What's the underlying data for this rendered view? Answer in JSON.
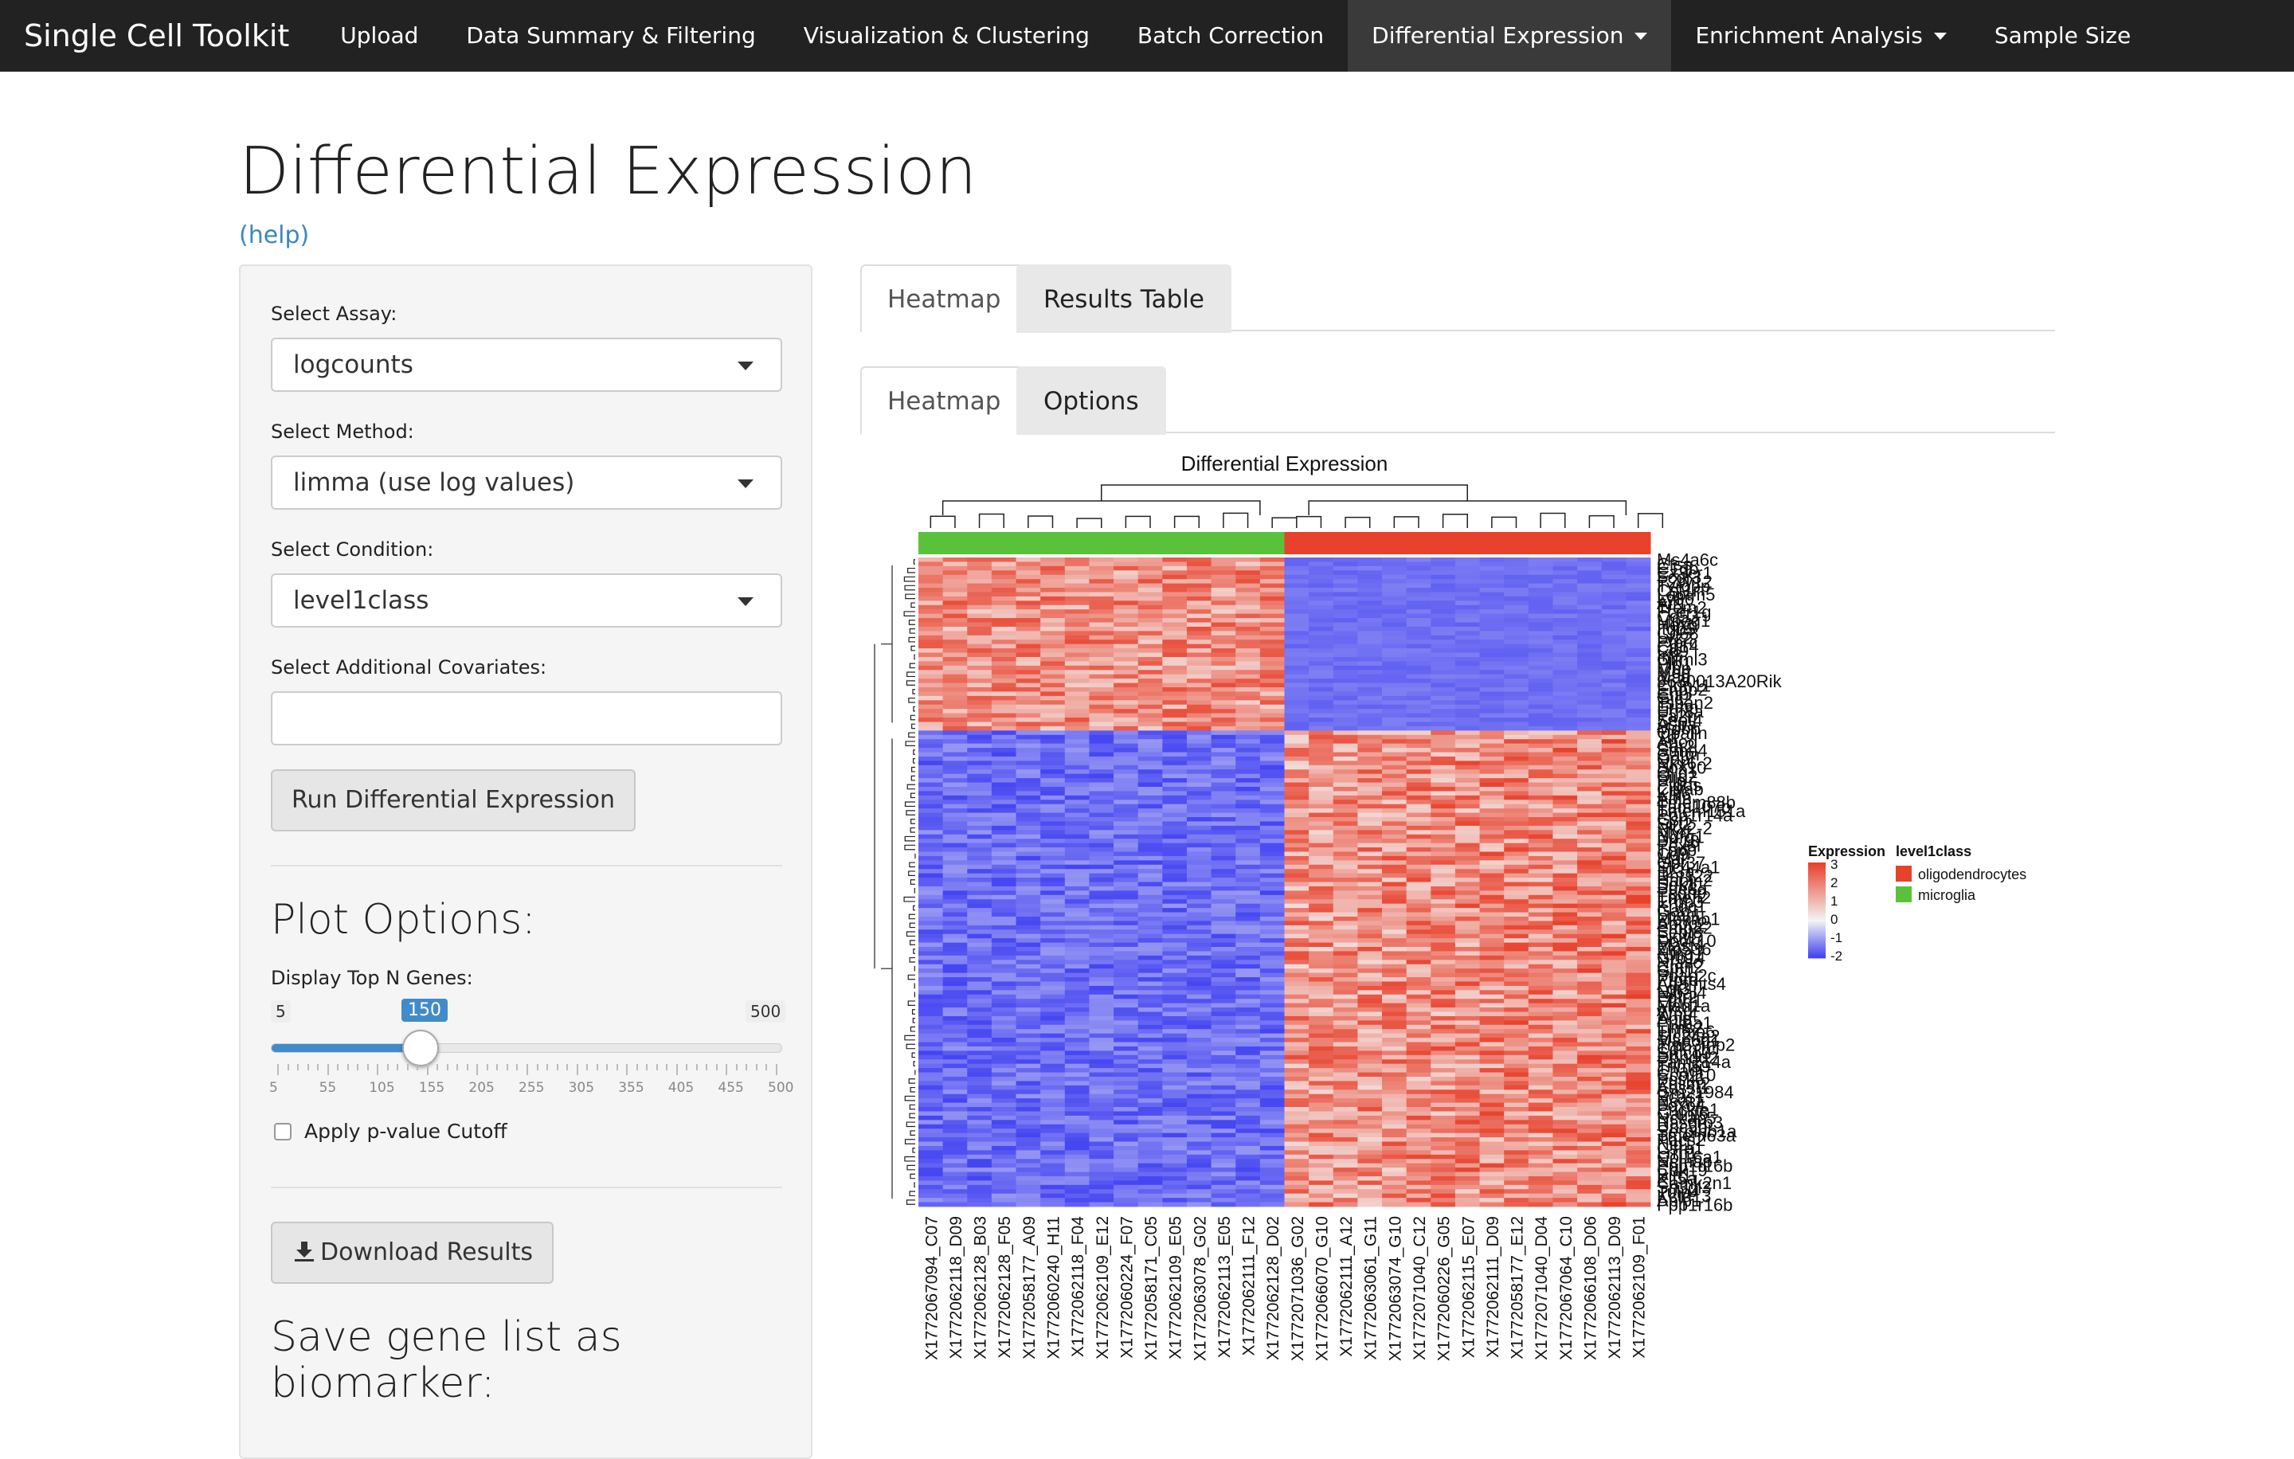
{
  "navbar": {
    "brand": "Single Cell Toolkit",
    "items": [
      {
        "label": "Upload"
      },
      {
        "label": "Data Summary & Filtering"
      },
      {
        "label": "Visualization & Clustering"
      },
      {
        "label": "Batch Correction"
      },
      {
        "label": "Differential Expression"
      },
      {
        "label": "Enrichment Analysis"
      },
      {
        "label": "Sample Size"
      }
    ]
  },
  "page": {
    "title": "Differential Expression",
    "help": "(help)"
  },
  "sidebar": {
    "assay_label": "Select Assay:",
    "assay_value": "logcounts",
    "method_label": "Select Method:",
    "method_value": "limma (use log values)",
    "condition_label": "Select Condition:",
    "condition_value": "level1class",
    "covariates_label": "Select Additional Covariates:",
    "covariates_value": "",
    "run_button": "Run Differential Expression",
    "plot_options_heading": "Plot Options:",
    "top_n_label": "Display Top N Genes:",
    "slider": {
      "min": 5,
      "max": 500,
      "value": 150,
      "min_label": "5",
      "max_label": "500",
      "value_label": "150",
      "ticks": [
        "5",
        "55",
        "105",
        "155",
        "205",
        "255",
        "305",
        "355",
        "405",
        "455",
        "500"
      ]
    },
    "pvalue_label": "Apply p-value Cutoff",
    "pvalue_checked": false,
    "download_button": "Download Results",
    "biomarker_heading": "Save gene list as biomarker:"
  },
  "tabs": {
    "main": [
      {
        "label": "Heatmap"
      },
      {
        "label": "Results Table"
      }
    ],
    "sub": [
      {
        "label": "Heatmap"
      },
      {
        "label": "Options"
      }
    ]
  },
  "heatmap": {
    "title": "Differential Expression",
    "samples": [
      "X1772067094_C07",
      "X1772062118_D09",
      "X1772062128_B03",
      "X1772062128_F05",
      "X1772058177_A09",
      "X1772060240_H11",
      "X1772062118_F04",
      "X1772062109_E12",
      "X1772060224_F07",
      "X1772058171_C05",
      "X1772062109_E05",
      "X1772063078_G02",
      "X1772062113_E05",
      "X1772062111_F12",
      "X1772062128_D02",
      "X1772071036_G02",
      "X1772066070_G10",
      "X1772062111_A12",
      "X1772063061_G11",
      "X1772063074_G10",
      "X1772071040_C12",
      "X1772060226_G05",
      "X1772062115_E07",
      "X1772062111_D09",
      "X1772058177_E12",
      "X1772071040_D04",
      "X1772067064_C10",
      "X1772066108_D06",
      "X1772062113_D09",
      "X1772062109_F01"
    ],
    "sample_groups": [
      "microglia",
      "microglia",
      "microglia",
      "microglia",
      "microglia",
      "microglia",
      "microglia",
      "microglia",
      "microglia",
      "microglia",
      "microglia",
      "microglia",
      "microglia",
      "microglia",
      "microglia",
      "oligodendrocytes",
      "oligodendrocytes",
      "oligodendrocytes",
      "oligodendrocytes",
      "oligodendrocytes",
      "oligodendrocytes",
      "oligodendrocytes",
      "oligodendrocytes",
      "oligodendrocytes",
      "oligodendrocytes",
      "oligodendrocytes",
      "oligodendrocytes",
      "oligodendrocytes",
      "oligodendrocytes",
      "oligodendrocytes"
    ],
    "gene_labels": [
      "Ms4a6c",
      "Ctss",
      "C1qb",
      "Cx3cr1",
      "Fcgr3",
      "P2ry12",
      "Tyrobp",
      "Csf1r",
      "Laptm5",
      "Ly86",
      "Aif1",
      "Trem2",
      "Fcer1g",
      "Cd53",
      "Mpeg1",
      "Hexb",
      "Itgb5",
      "Cd68",
      "Lyz2",
      "Ptprc",
      "Cd14",
      "Cd9",
      "Irf8",
      "Olfml3",
      "Plp1",
      "Mbp",
      "Mog",
      "Mag",
      "9630013A20Rik",
      "Cldn11",
      "Enpp2",
      "Cnp",
      "Gjc2",
      "Tspan2",
      "Ermn",
      "Ugt8a",
      "Fa2h",
      "Sept4",
      "Aspa",
      "Mobp",
      "Opalin",
      "Trf",
      "Apod",
      "Car2",
      "Stmn4",
      "Gatm",
      "Qdpr",
      "Nkx6-2",
      "Sox10",
      "Olig1",
      "Olig2",
      "Pllp",
      "Ptgds",
      "Cryab",
      "Klk6",
      "Anln",
      "Tmem88b",
      "Fam107b",
      "Tmem151a",
      "Ppp1r14a",
      "Gsn",
      "Sirt2",
      "Nkx2-2",
      "Myrf",
      "Ndrg1",
      "Prr18",
      "Pex5l",
      "Tppp",
      "Cd9",
      "Mal",
      "Gpr37",
      "Slc44a1",
      "Il23a",
      "Rnf122",
      "Hapln2",
      "Sgk1",
      "Pde8a",
      "Pcdh9",
      "Tmeff2",
      "Erbb3",
      "Kndc1",
      "Gab1",
      "Lpar1",
      "Plekhb1",
      "Apbb2",
      "Pmp22",
      "Sept8",
      "Elovl7",
      "Dock10",
      "Mast4",
      "Zfp536",
      "Ntng1",
      "Grb14",
      "Nfasc",
      "Cntn2",
      "Gjb1",
      "Ppap2c",
      "Ptprd",
      "Adamts4",
      "Lgi3",
      "Nipal4",
      "Fgfr2",
      "Efhd1",
      "Man1a",
      "Arsg",
      "Wnt4",
      "Apip",
      "Prima1",
      "Lims2",
      "Tnfaip6",
      "Slc24a2",
      "Map6d1",
      "Trp53inp2",
      "Cdkn1c",
      "Smco3",
      "Dbndd2",
      "Fam214a",
      "Trim59",
      "Chadl",
      "Ccp110",
      "Pcsk6",
      "Pdlim2",
      "Adssl1",
      "Gm21984",
      "Bcas1",
      "Neat1",
      "Foxo4",
      "Prickle1",
      "Galnt6",
      "Nckap5",
      "Rasgrp3",
      "Unc5b",
      "Serpinb1a",
      "Tmem63a",
      "Pacs2",
      "Nid1",
      "Csrp1",
      "Lrrn1",
      "Col16a1",
      "Ncmap",
      "Ppp1r16b",
      "Cdk19",
      "Bin1",
      "Kif5a",
      "Camk2n1",
      "Sh3gl3",
      "Tulp4",
      "Kctd13",
      "Aplp1",
      "Ppp1r16b"
    ],
    "legend": {
      "expression_title": "Expression",
      "expression_ticks": [
        "3",
        "2",
        "1",
        "0",
        "-1",
        "-2"
      ],
      "group_title": "level1class",
      "groups": [
        {
          "name": "oligodendrocytes",
          "color": "#e8412c"
        },
        {
          "name": "microglia",
          "color": "#5ac23a"
        }
      ]
    },
    "colors": {
      "high": "#e8412c",
      "mid": "#f4f4f4",
      "low": "#3b3bf2"
    }
  }
}
